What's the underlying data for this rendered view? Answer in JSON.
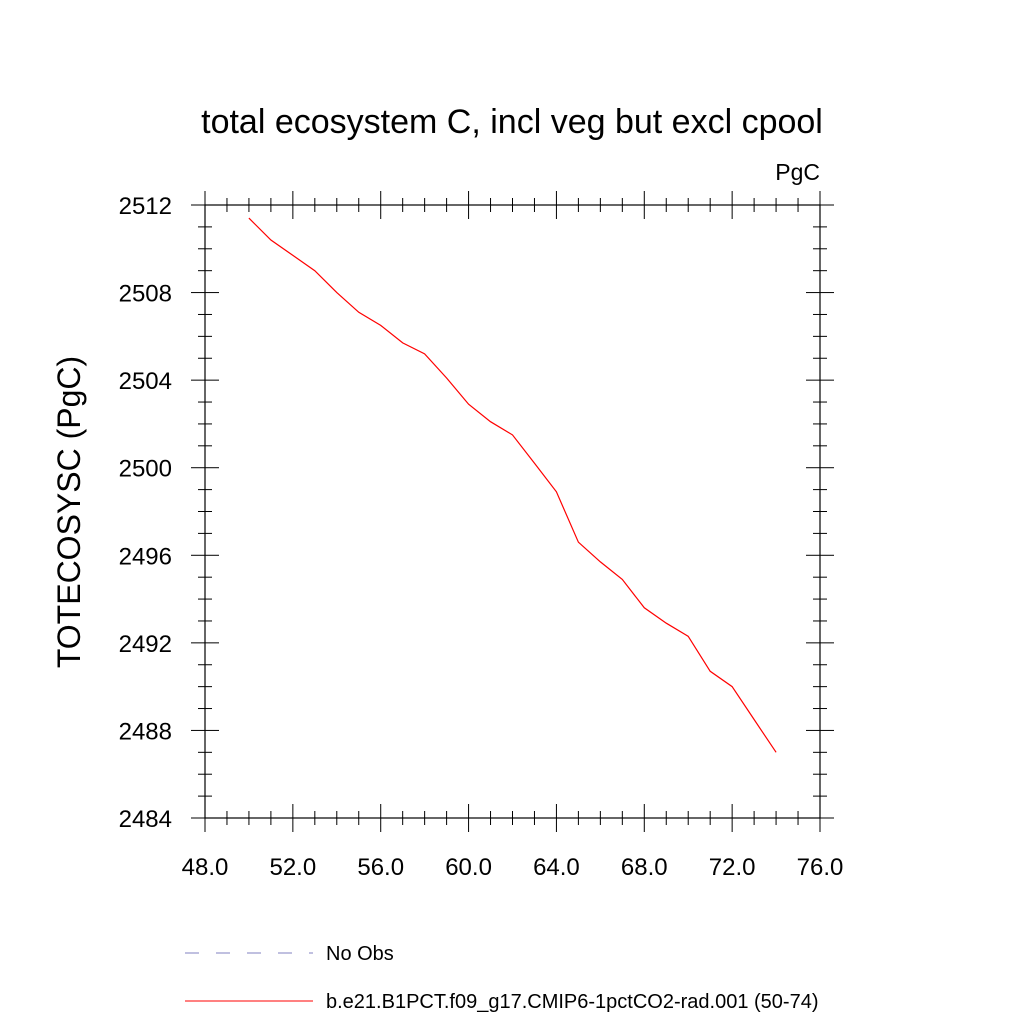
{
  "chart_data": {
    "type": "line",
    "title": "total ecosystem C, incl veg but excl cpool",
    "units_label": "PgC",
    "xlabel": "",
    "ylabel": "TOTECOSYSC  (PgC)",
    "xlim": [
      48.0,
      76.0
    ],
    "ylim": [
      2484,
      2512
    ],
    "x_ticks": [
      "48.0",
      "52.0",
      "56.0",
      "60.0",
      "64.0",
      "68.0",
      "72.0",
      "76.0"
    ],
    "y_ticks": [
      "2484",
      "2488",
      "2492",
      "2496",
      "2500",
      "2504",
      "2508",
      "2512"
    ],
    "grid": false,
    "legend_position": "bottom",
    "series": [
      {
        "name": "No Obs",
        "color": "#8080c0",
        "style": "dashed",
        "x": [],
        "y": []
      },
      {
        "name": "b.e21.B1PCT.f09_g17.CMIP6-1pctCO2-rad.001 (50-74)",
        "color": "#ff0000",
        "style": "solid",
        "x": [
          50,
          51,
          52,
          53,
          54,
          55,
          56,
          57,
          58,
          59,
          60,
          61,
          62,
          63,
          64,
          65,
          66,
          67,
          68,
          69,
          70,
          71,
          72,
          73,
          74
        ],
        "y": [
          2511.4,
          2510.4,
          2509.7,
          2509.0,
          2508.0,
          2507.1,
          2506.5,
          2505.7,
          2505.2,
          2504.1,
          2502.9,
          2502.1,
          2501.5,
          2500.2,
          2498.9,
          2496.6,
          2495.7,
          2494.9,
          2493.6,
          2492.9,
          2492.3,
          2490.7,
          2490.0,
          2488.5,
          2487.0
        ]
      }
    ]
  }
}
